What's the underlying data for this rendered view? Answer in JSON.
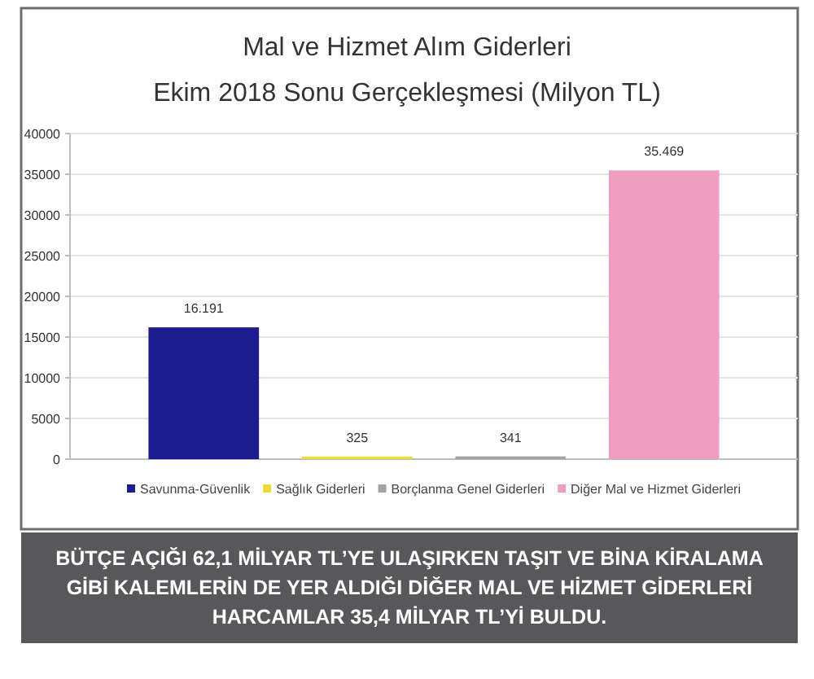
{
  "chart_data": {
    "type": "bar",
    "title": "Mal ve Hizmet Alım Giderleri",
    "subtitle": "Ekim 2018 Sonu Gerçekleşmesi (Milyon TL)",
    "categories": [
      null
    ],
    "series": [
      {
        "name": "Savunma-Güvenlik",
        "color": "#1c1c8e",
        "values": [
          16191
        ],
        "value_labels": [
          "16.191"
        ]
      },
      {
        "name": "Sağlık Giderleri",
        "color": "#e6dc3c",
        "values": [
          325
        ],
        "value_labels": [
          "325"
        ]
      },
      {
        "name": "Borçlanma Genel Giderleri",
        "color": "#a3a3a3",
        "values": [
          341
        ],
        "value_labels": [
          "341"
        ]
      },
      {
        "name": "Diğer Mal ve Hizmet Giderleri",
        "color": "#ee9fc0",
        "values": [
          35469
        ],
        "value_labels": [
          "35.469"
        ]
      }
    ],
    "ylim": [
      0,
      40000
    ],
    "yticks": [
      0,
      5000,
      10000,
      15000,
      20000,
      25000,
      30000,
      35000,
      40000
    ],
    "grid": "y",
    "legend": "bottom",
    "annotations": [
      "BÜTÇE AÇIĞI 62,1 MİLYAR TL’YE ULAŞIRKEN TAŞIT VE BİNA KİRALAMA GİBİ KALEMLERİN DE YER ALDIĞI DİĞER MAL VE HİZMET GİDERLERİ HARCAMLAR 35,4 MİLYAR TL’Yİ BULDU."
    ]
  }
}
